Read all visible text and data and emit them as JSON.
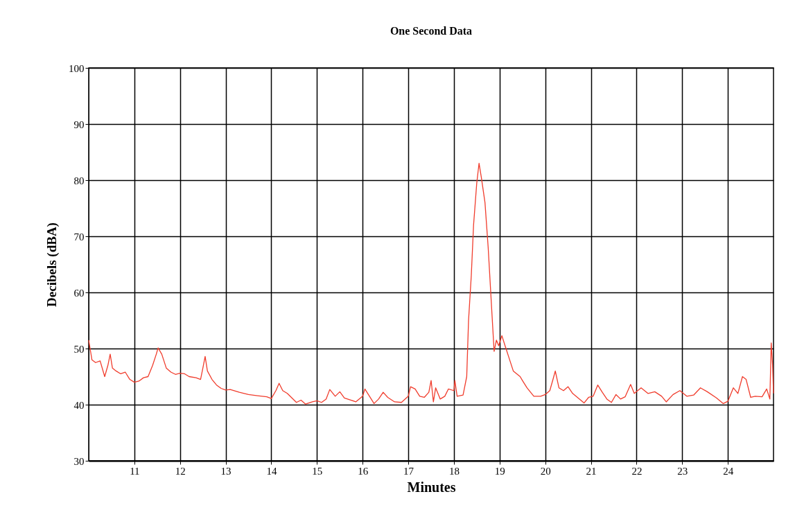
{
  "chart_data": {
    "type": "line",
    "title": "One Second Data",
    "xlabel": "Minutes",
    "ylabel": "Decibels (dBA)",
    "xlim": [
      10,
      25
    ],
    "xticks": [
      11,
      12,
      13,
      14,
      15,
      16,
      17,
      18,
      19,
      20,
      21,
      22,
      23,
      24
    ],
    "ylim": [
      30,
      100
    ],
    "yticks": [
      30,
      40,
      50,
      60,
      70,
      80,
      90,
      100
    ],
    "grid": true,
    "marker": "none",
    "line_style": "solid",
    "series": [
      {
        "color": "#f03c2c",
        "x": [
          10.0,
          10.03,
          10.07,
          10.15,
          10.25,
          10.35,
          10.42,
          10.47,
          10.52,
          10.6,
          10.7,
          10.8,
          10.9,
          11.0,
          11.1,
          11.2,
          11.3,
          11.4,
          11.48,
          11.52,
          11.6,
          11.7,
          11.8,
          11.9,
          12.0,
          12.1,
          12.2,
          12.35,
          12.45,
          12.5,
          12.55,
          12.6,
          12.7,
          12.8,
          12.9,
          13.0,
          13.1,
          13.3,
          13.5,
          13.7,
          13.9,
          14.0,
          14.1,
          14.17,
          14.25,
          14.35,
          14.45,
          14.55,
          14.65,
          14.75,
          14.9,
          15.0,
          15.1,
          15.2,
          15.28,
          15.4,
          15.5,
          15.6,
          15.75,
          15.85,
          16.0,
          16.05,
          16.15,
          16.25,
          16.35,
          16.45,
          16.55,
          16.7,
          16.85,
          17.0,
          17.05,
          17.15,
          17.25,
          17.35,
          17.45,
          17.5,
          17.55,
          17.6,
          17.7,
          17.8,
          17.88,
          18.0,
          18.02,
          18.07,
          18.2,
          18.28,
          18.32,
          18.38,
          18.43,
          18.5,
          18.55,
          18.6,
          18.68,
          18.75,
          18.82,
          18.88,
          18.93,
          18.98,
          19.05,
          19.12,
          19.2,
          19.3,
          19.45,
          19.5,
          19.6,
          19.75,
          19.9,
          20.0,
          20.1,
          20.17,
          20.22,
          20.3,
          20.4,
          20.5,
          20.6,
          20.75,
          20.85,
          20.95,
          21.05,
          21.15,
          21.25,
          21.35,
          21.45,
          21.55,
          21.65,
          21.75,
          21.87,
          21.95,
          22.1,
          22.25,
          22.4,
          22.55,
          22.65,
          22.8,
          22.95,
          23.1,
          23.25,
          23.4,
          23.55,
          23.75,
          23.9,
          24.0,
          24.12,
          24.22,
          24.32,
          24.4,
          24.5,
          24.6,
          24.75,
          24.85,
          24.92,
          24.95,
          24.98,
          25.0
        ],
        "values": [
          51.5,
          50,
          48,
          47.5,
          47.8,
          45,
          47,
          49,
          46.5,
          46,
          45.5,
          45.8,
          44.5,
          44,
          44.2,
          44.8,
          45,
          47,
          49,
          50.1,
          49,
          46.5,
          45.8,
          45.4,
          45.6,
          45.5,
          45,
          44.8,
          44.5,
          46.5,
          48.6,
          46,
          44.5,
          43.5,
          42.9,
          42.6,
          42.7,
          42.2,
          41.8,
          41.6,
          41.4,
          41.1,
          42.5,
          43.8,
          42.5,
          42,
          41.2,
          40.4,
          40.8,
          40.1,
          40.5,
          40.7,
          40.4,
          41,
          42.7,
          41.5,
          42.3,
          41.2,
          40.8,
          40.5,
          41.5,
          42.8,
          41.5,
          40.2,
          41,
          42.2,
          41.3,
          40.5,
          40.4,
          41.5,
          43.2,
          42.8,
          41.5,
          41.3,
          42.2,
          44.3,
          40.5,
          43,
          41,
          41.5,
          42.8,
          42.5,
          44.3,
          41.5,
          41.7,
          45,
          55,
          63,
          72,
          79.5,
          83,
          80.5,
          76,
          68,
          58,
          49.5,
          51.5,
          50.5,
          52.3,
          50.5,
          48.5,
          46,
          45,
          44.3,
          43,
          41.5,
          41.5,
          41.8,
          42.5,
          44.5,
          46,
          43,
          42.5,
          43.2,
          42,
          41,
          40.3,
          41.3,
          41.5,
          43.5,
          42.2,
          41,
          40.4,
          41.8,
          41,
          41.4,
          43.6,
          42,
          43,
          42,
          42.3,
          41.5,
          40.5,
          41.8,
          42.5,
          41.5,
          41.7,
          43,
          42.3,
          41.2,
          40.2,
          40.6,
          43,
          42,
          45,
          44.5,
          41.3,
          41.5,
          41.4,
          42.8,
          41,
          51,
          47,
          42
        ]
      }
    ]
  }
}
